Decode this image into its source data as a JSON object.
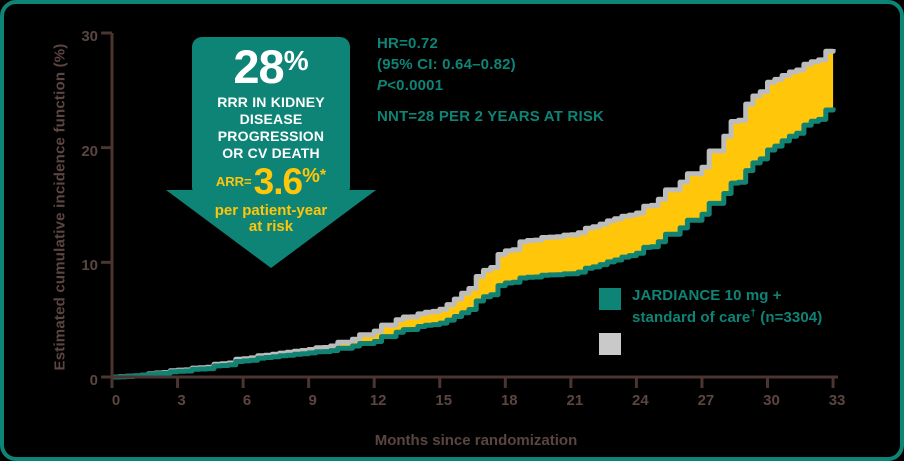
{
  "colors": {
    "teal": "#0e8476",
    "curve_teal": "#128372",
    "curve_gray": "#bdbdbd",
    "fill_yellow": "#ffc60a",
    "axis_line": "#4a3531",
    "axis_text": "#5b4540",
    "white": "#ffffff",
    "background": "#000000",
    "legend_gray": "#c9c9c9"
  },
  "callout": {
    "headline_number": "28",
    "headline_percent": "%",
    "headline_lines": [
      "RRR IN KIDNEY",
      "DISEASE",
      "PROGRESSION",
      "OR CV DEATH"
    ],
    "arr_label": "ARR=",
    "arr_number": "3.6",
    "arr_percent": "%",
    "arr_footnote": "*",
    "sub_line1": "per patient-year",
    "sub_line2": "at risk"
  },
  "stats": {
    "hr": "HR=0.72",
    "ci": "(95% CI: 0.64–0.82)",
    "p_italic": "P",
    "p_rest": "<0.0001",
    "nnt": "NNT=28 PER 2 YEARS AT RISK"
  },
  "legend": {
    "jardiance": {
      "line1": "JARDIANCE 10 mg +",
      "line2_pre": "standard of care",
      "line2_sup": "†",
      "line2_post": " (n=3304)",
      "swatch_color": "#0e8476"
    },
    "comparator": {
      "label": "",
      "swatch_color": "#c9c9c9"
    }
  },
  "chart_data": {
    "type": "line",
    "subtype": "cumulative-incidence-step-curves",
    "title": "",
    "xlabel": "Months since randomization",
    "ylabel": "Estimated cumulative incidence function (%)",
    "xlim": [
      0,
      33
    ],
    "ylim": [
      0,
      30
    ],
    "x_ticks": [
      0,
      3,
      6,
      9,
      12,
      15,
      18,
      21,
      24,
      27,
      30,
      33
    ],
    "y_ticks": [
      0,
      10,
      20,
      30
    ],
    "grid": false,
    "legend_position": "right-middle",
    "fill_between_color": "#ffc60a",
    "x": [
      0,
      1,
      2,
      3,
      4,
      5,
      6,
      7,
      8,
      9,
      10,
      11,
      12,
      13,
      14,
      15,
      16,
      17,
      18,
      19,
      20,
      21,
      22,
      23,
      24,
      25,
      26,
      27,
      28,
      29,
      30,
      31,
      32,
      33
    ],
    "series": [
      {
        "name": "JARDIANCE 10 mg + standard of care (n=3304)",
        "color": "#128372",
        "values": [
          0,
          0.1,
          0.3,
          0.5,
          0.7,
          1.0,
          1.4,
          1.7,
          1.9,
          2.1,
          2.3,
          2.7,
          3.1,
          3.9,
          4.4,
          4.7,
          5.6,
          7.0,
          8.2,
          8.7,
          8.9,
          9.0,
          9.6,
          10.2,
          10.8,
          11.8,
          13.0,
          14.2,
          16.0,
          18.0,
          19.8,
          21.0,
          22.3,
          23.5
        ]
      },
      {
        "name": "unlabeled gray comparator curve",
        "color": "#bdbdbd",
        "values": [
          0,
          0.1,
          0.35,
          0.6,
          0.8,
          1.15,
          1.6,
          1.9,
          2.15,
          2.4,
          2.7,
          3.3,
          4.0,
          5.0,
          5.5,
          5.9,
          7.3,
          9.3,
          11.0,
          11.9,
          12.2,
          12.4,
          13.1,
          13.8,
          14.3,
          15.5,
          17.0,
          18.3,
          21.0,
          23.8,
          25.7,
          26.6,
          27.5,
          28.6
        ]
      }
    ]
  },
  "x_axis": {
    "label": "Months since randomization",
    "ticks": [
      "0",
      "3",
      "6",
      "9",
      "12",
      "15",
      "18",
      "21",
      "24",
      "27",
      "30",
      "33"
    ]
  },
  "y_axis": {
    "label": "Estimated cumulative incidence function (%)",
    "ticks": [
      "0",
      "10",
      "20",
      "30"
    ]
  }
}
